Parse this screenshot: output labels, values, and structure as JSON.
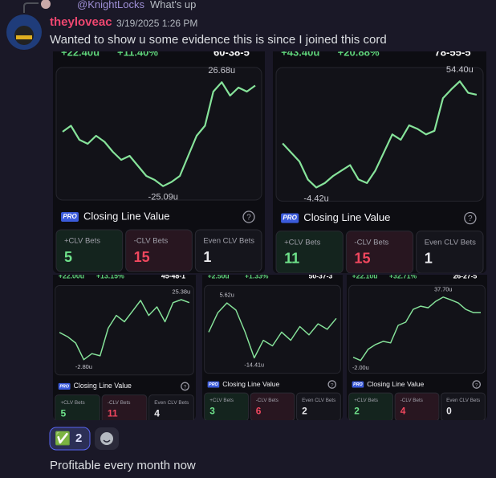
{
  "reply": {
    "author": "@KnightLocks",
    "text": "What's up"
  },
  "message": {
    "author": "theyloveac",
    "timestamp": "3/19/2025 1:26 PM",
    "text": "Wanted to show u some evidence this is since I joined this cord"
  },
  "cards": [
    {
      "header": [
        "+22.40u",
        "+11.40%",
        "60-38-5"
      ],
      "badge": "PRO",
      "title": "Closing Line Value",
      "help": "?",
      "ylim": [
        -32,
        34
      ],
      "values": [
        2,
        5,
        -2,
        -4,
        0,
        -3,
        -8,
        -12,
        -10,
        -15,
        -20,
        -22,
        -25.09,
        -23,
        -20,
        -10,
        0,
        5,
        22,
        26.68,
        20,
        24,
        22,
        25
      ],
      "value_labels": [
        null,
        null,
        null,
        null,
        null,
        null,
        null,
        null,
        null,
        null,
        null,
        null,
        "-25.09u",
        null,
        null,
        null,
        null,
        null,
        null,
        "26.68u",
        null,
        null,
        null,
        null
      ],
      "stats": [
        {
          "label": "+CLV Bets",
          "value": 5
        },
        {
          "label": "-CLV Bets",
          "value": 15
        },
        {
          "label": "Even CLV Bets",
          "value": 1
        }
      ]
    },
    {
      "header": [
        "+43.40u",
        "+20.88%",
        "78-55-5"
      ],
      "badge": "PRO",
      "title": "Closing Line Value",
      "help": "?",
      "ylim": [
        -12,
        62
      ],
      "values": [
        20,
        15,
        10,
        0,
        -4.42,
        -2,
        2,
        5,
        8,
        0,
        -2,
        5,
        15,
        25,
        22,
        30,
        28,
        25,
        27,
        45,
        50,
        54.4,
        48,
        47
      ],
      "value_labels": [
        null,
        null,
        null,
        null,
        "-4.42u",
        null,
        null,
        null,
        null,
        null,
        null,
        null,
        null,
        null,
        null,
        null,
        null,
        null,
        null,
        null,
        null,
        "54.40u",
        null,
        null
      ],
      "stats": [
        {
          "label": "+CLV Bets",
          "value": 11
        },
        {
          "label": "-CLV Bets",
          "value": 15
        },
        {
          "label": "Even CLV Bets",
          "value": 1
        }
      ]
    },
    {
      "header": [
        "+22.00u",
        "+13.15%",
        "45-48-1"
      ],
      "badge": "PRO",
      "title": "Closing Line Value",
      "help": "?",
      "ylim": [
        -10,
        32
      ],
      "values": [
        10,
        8,
        5,
        -2.8,
        0,
        -1,
        12,
        18,
        15,
        20,
        25,
        18,
        22,
        15,
        24,
        25.38,
        24
      ],
      "value_labels": [
        null,
        null,
        null,
        "-2.80u",
        null,
        null,
        null,
        null,
        null,
        null,
        null,
        null,
        null,
        null,
        null,
        "25.38u",
        null
      ],
      "stats": [
        {
          "label": "+CLV Bets",
          "value": 5
        },
        {
          "label": "-CLV Bets",
          "value": 11
        },
        {
          "label": "Even CLV Bets",
          "value": 4
        }
      ]
    },
    {
      "header": [
        "+2.50u",
        "+1.33%",
        "50-37-3"
      ],
      "badge": "PRO",
      "title": "Closing Line Value",
      "help": "?",
      "ylim": [
        -20,
        12
      ],
      "values": [
        -5,
        2,
        5.62,
        3,
        -5,
        -14.41,
        -8,
        -10,
        -5,
        -8,
        -3,
        -6,
        -2,
        -4,
        0
      ],
      "value_labels": [
        null,
        null,
        "5.62u",
        null,
        null,
        "-14.41u",
        null,
        null,
        null,
        null,
        null,
        null,
        null,
        null,
        null
      ],
      "stats": [
        {
          "label": "+CLV Bets",
          "value": 3
        },
        {
          "label": "-CLV Bets",
          "value": 6
        },
        {
          "label": "Even CLV Bets",
          "value": 2
        }
      ]
    },
    {
      "header": [
        "+22.10u",
        "+32.71%",
        "26-27-5"
      ],
      "badge": "PRO",
      "title": "Closing Line Value",
      "help": "?",
      "ylim": [
        -10,
        45
      ],
      "values": [
        0,
        -2,
        5,
        8,
        10,
        9,
        20,
        22,
        30,
        32,
        31,
        35,
        37.7,
        36,
        34,
        30,
        28,
        28
      ],
      "value_labels": [
        null,
        "-2.00u",
        null,
        null,
        null,
        null,
        null,
        null,
        null,
        null,
        null,
        null,
        "37.70u",
        null,
        null,
        null,
        null,
        null
      ],
      "stats": [
        {
          "label": "+CLV Bets",
          "value": 2
        },
        {
          "label": "-CLV Bets",
          "value": 4
        },
        {
          "label": "Even CLV Bets",
          "value": 0
        }
      ]
    }
  ],
  "reactions": [
    {
      "emoji": "✅",
      "count": 2
    }
  ],
  "next_message": {
    "text": "Profitable every month now"
  }
}
